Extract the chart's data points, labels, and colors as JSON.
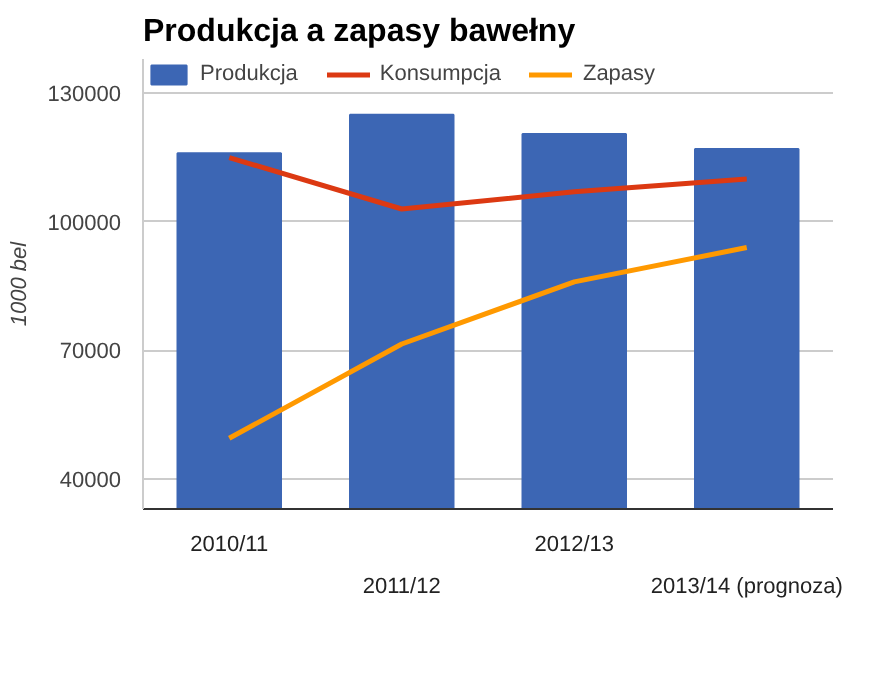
{
  "chart_data": {
    "type": "bar",
    "title": "Produkcja a zapasy bawełny",
    "ylabel": "1000 bel",
    "categories": [
      "2010/11",
      "2011/12",
      "2012/13",
      "2013/14 (prognoza)"
    ],
    "series": [
      {
        "name": "Produkcja",
        "color": "#3c66b4",
        "values": [
          116000,
          125000,
          120500,
          117000
        ]
      },
      {
        "name": "Konsumpcja",
        "type": "line",
        "color": "#dc3912",
        "values": [
          115000,
          103000,
          107000,
          110000
        ]
      },
      {
        "name": "Zapasy",
        "type": "line",
        "color": "#ff9900",
        "values": [
          49500,
          71500,
          86000,
          94000
        ]
      }
    ],
    "ylim": [
      33000,
      138000
    ],
    "yticks": [
      40000,
      70000,
      100000,
      130000
    ],
    "grid": "y",
    "legend": "top"
  }
}
